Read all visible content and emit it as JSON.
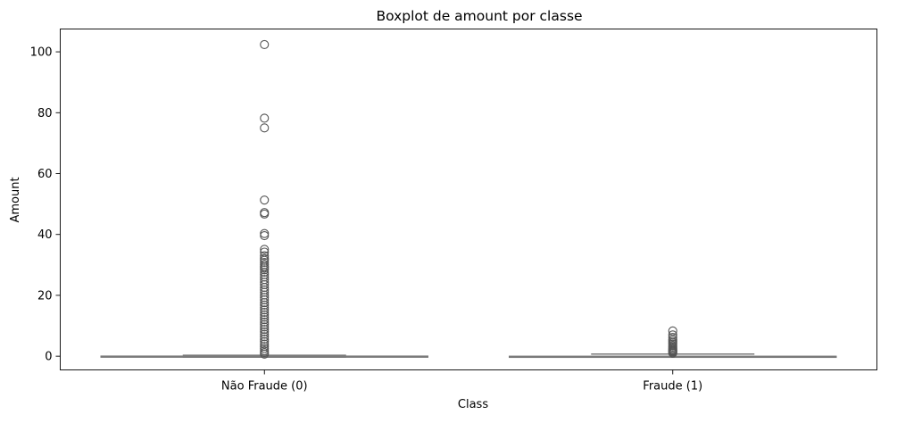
{
  "chart_data": {
    "type": "boxplot",
    "title": "Boxplot de amount por classe",
    "xlabel": "Class",
    "ylabel": "Amount",
    "ylim": [
      -4.5,
      107.5
    ],
    "yticks": [
      0,
      20,
      40,
      60,
      80,
      100
    ],
    "grid": false,
    "box_color": "#7a7a7a",
    "categories": [
      "Não Fraude (0)",
      "Fraude (1)"
    ],
    "boxes": [
      {
        "category": "Não Fraude (0)",
        "whisker_low": -0.3,
        "q1": -0.25,
        "median": -0.15,
        "q3": 0.0,
        "whisker_high": 0.3,
        "outliers": [
          102.4,
          78.2,
          75.0,
          51.3,
          47.2,
          46.7,
          40.3,
          39.6,
          35.1,
          34.2,
          33.0,
          32.1,
          31.5,
          30.8,
          30.1,
          29.5,
          29.0,
          28.4,
          27.6,
          26.8,
          26.0,
          25.2,
          24.3,
          23.5,
          22.6,
          21.8,
          21.0,
          20.1,
          19.3,
          18.5,
          17.6,
          16.8,
          16.0,
          15.2,
          14.4,
          13.6,
          12.8,
          12.0,
          11.2,
          10.4,
          9.6,
          8.8,
          8.0,
          7.2,
          6.4,
          5.6,
          4.8,
          4.0,
          3.2,
          2.5,
          1.8,
          1.2,
          0.7
        ]
      },
      {
        "category": "Fraude (1)",
        "whisker_low": -0.3,
        "q1": -0.28,
        "median": -0.2,
        "q3": -0.05,
        "whisker_high": 0.7,
        "outliers": [
          8.3,
          7.0,
          6.2,
          5.5,
          4.9,
          4.4,
          3.9,
          3.4,
          3.0,
          2.6,
          2.2,
          1.9,
          1.6,
          1.3,
          1.0
        ]
      }
    ]
  }
}
